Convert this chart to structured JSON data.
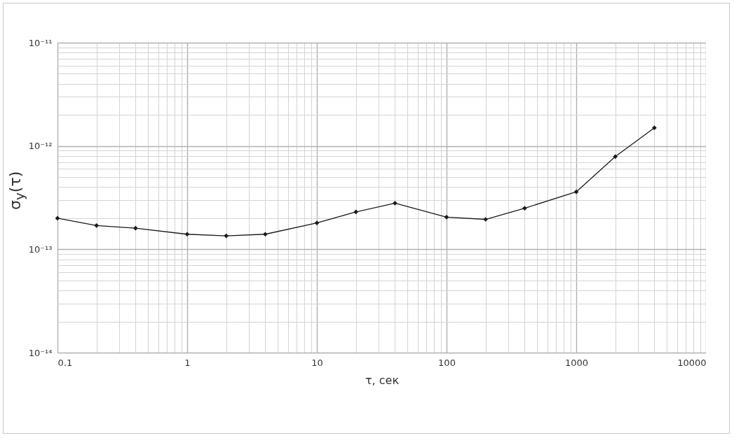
{
  "chart_data": {
    "type": "line",
    "xlabel": "τ, сек",
    "ylabel": "σ$_{y}$(τ)",
    "x": [
      0.1,
      0.2,
      0.4,
      1,
      2,
      4,
      10,
      20,
      40,
      100,
      200,
      400,
      1000,
      2000,
      4000
    ],
    "series": [
      {
        "color": "#1a1a1a",
        "values": [
          2e-13,
          1.7e-13,
          1.6e-13,
          1.4e-13,
          1.35e-13,
          1.4e-13,
          1.8e-13,
          2.3e-13,
          2.8e-13,
          2.05e-13,
          1.95e-13,
          2.5e-13,
          3.6e-13,
          7.9e-13,
          1.5e-12
        ]
      }
    ],
    "xlim": [
      0.1,
      10000
    ],
    "ylim": [
      1e-14,
      1e-11
    ],
    "xticks": [
      0.1,
      1,
      10,
      100,
      1000,
      10000
    ],
    "yticks": [
      {
        "value": 1e-14,
        "label": "10⁻¹⁴"
      },
      {
        "value": 1e-13,
        "label": "10⁻¹³"
      },
      {
        "value": 1e-12,
        "label": "10⁻¹²"
      },
      {
        "value": 1e-11,
        "label": "10⁻¹¹"
      }
    ],
    "log": "xy",
    "grid": true,
    "marker": "diamond",
    "line_style": "solid"
  }
}
